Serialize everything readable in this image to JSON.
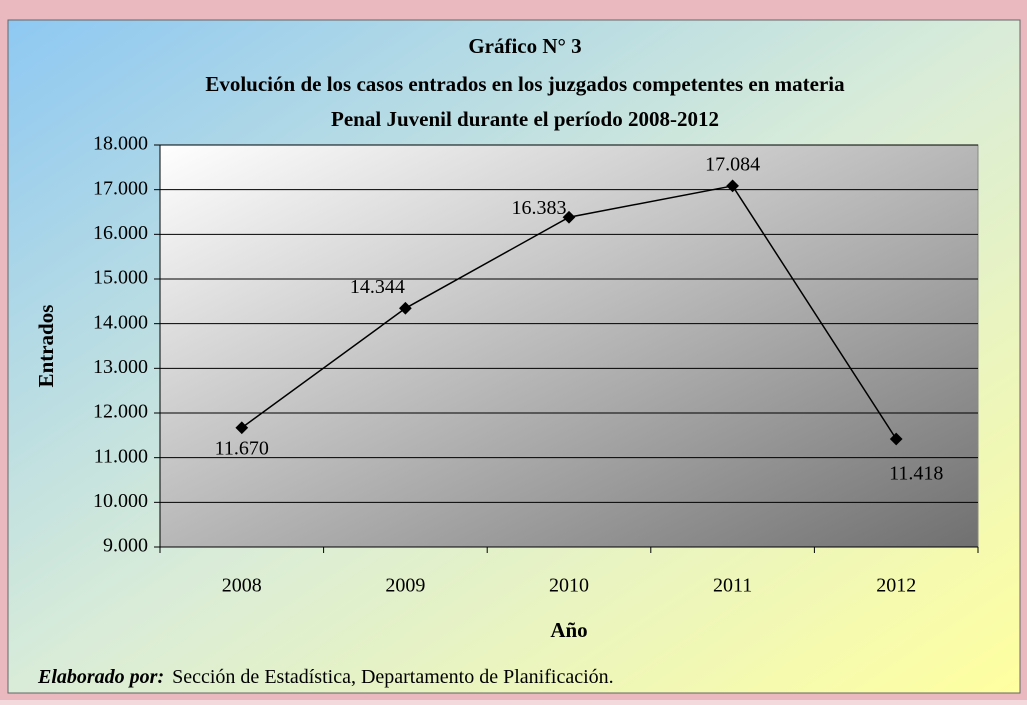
{
  "chart_data": {
    "type": "line",
    "title": [
      "Gráfico N° 3",
      "Evolución de los casos entrados en los juzgados competentes en materia",
      "Penal Juvenil durante el período 2008-2012"
    ],
    "x_label": "Año",
    "y_label": "Entrados",
    "categories": [
      "2008",
      "2009",
      "2010",
      "2011",
      "2012"
    ],
    "values": [
      11670,
      14344,
      16383,
      17084,
      11418
    ],
    "value_labels": [
      "11.670",
      "14.344",
      "16.383",
      "17.084",
      "11.418"
    ],
    "color": "#000000",
    "ylim": [
      9000,
      18000
    ],
    "yticks": [
      {
        "value": 9000,
        "label": "9.000"
      },
      {
        "value": 10000,
        "label": "10.000"
      },
      {
        "value": 11000,
        "label": "11.000"
      },
      {
        "value": 12000,
        "label": "12.000"
      },
      {
        "value": 13000,
        "label": "13.000"
      },
      {
        "value": 14000,
        "label": "14.000"
      },
      {
        "value": 15000,
        "label": "15.000"
      },
      {
        "value": 16000,
        "label": "16.000"
      },
      {
        "value": 17000,
        "label": "17.000"
      },
      {
        "value": 18000,
        "label": "18.000"
      }
    ],
    "grid": true,
    "note": {
      "label": "Elaborado por:",
      "text": "Sección de Estadística, Departamento de Planificación."
    }
  }
}
